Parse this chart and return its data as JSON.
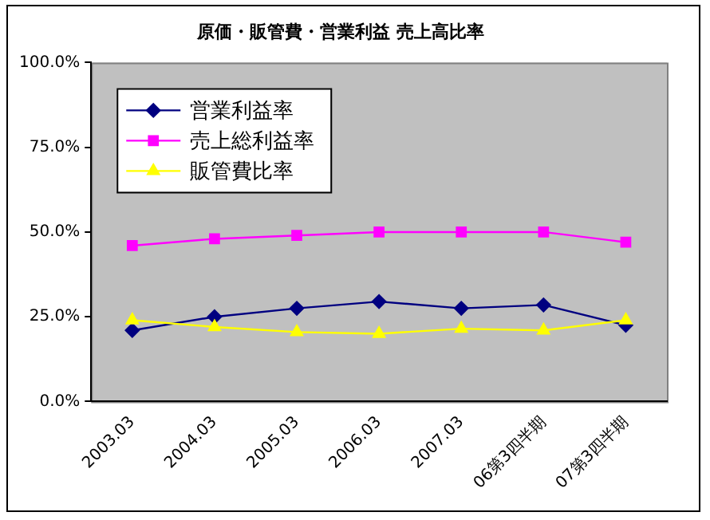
{
  "chart_data": {
    "type": "line",
    "title": "原価・販管費・営業利益 売上高比率",
    "categories": [
      "2003.03",
      "2004.03",
      "2005.03",
      "2006.03",
      "2007.03",
      "06第3四半期",
      "07第3四半期"
    ],
    "series": [
      {
        "name": "営業利益率",
        "color": "#000080",
        "marker": "diamond",
        "values": [
          21,
          25,
          27.5,
          29.5,
          27.5,
          28.5,
          22.5
        ]
      },
      {
        "name": "売上総利益率",
        "color": "#ff00ff",
        "marker": "square",
        "values": [
          46,
          48,
          49,
          50,
          50,
          50,
          47
        ]
      },
      {
        "name": "販管費比率",
        "color": "#ffff00",
        "marker": "triangle",
        "values": [
          24,
          22,
          20.5,
          20,
          21.5,
          21,
          24
        ]
      }
    ],
    "ylim": [
      0,
      100
    ],
    "yticks": [
      {
        "value": 0,
        "label": "0.0%"
      },
      {
        "value": 25,
        "label": "25.0%"
      },
      {
        "value": 50,
        "label": "50.0%"
      },
      {
        "value": 75,
        "label": "75.0%"
      },
      {
        "value": 100,
        "label": "100.0%"
      }
    ],
    "grid": false,
    "legend": "top left",
    "line_style": "solid"
  }
}
